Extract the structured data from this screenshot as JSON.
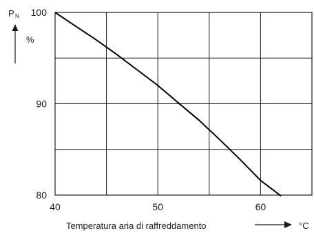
{
  "chart_data": {
    "type": "line",
    "title": "",
    "xlabel": "Temperatura aria di raffreddamento",
    "xunit": "°C",
    "ylabel_symbol": "P",
    "ylabel_subscript": "N",
    "yunit": "%",
    "xlim": [
      40,
      65
    ],
    "ylim": [
      80,
      100
    ],
    "x_ticks": [
      40,
      50,
      60
    ],
    "y_ticks": [
      80,
      90,
      100
    ],
    "x_gridlines": [
      40,
      45,
      50,
      55,
      60,
      65
    ],
    "y_gridlines": [
      80,
      85,
      90,
      95,
      100
    ],
    "grid": true,
    "series": [
      {
        "name": "",
        "x": [
          40,
          42,
          44,
          46,
          48,
          50,
          52,
          54,
          56,
          58,
          60,
          62
        ],
        "y": [
          100,
          98.5,
          97,
          95.4,
          93.7,
          92,
          90.1,
          88.2,
          86.1,
          83.9,
          81.6,
          79.9
        ]
      }
    ]
  }
}
